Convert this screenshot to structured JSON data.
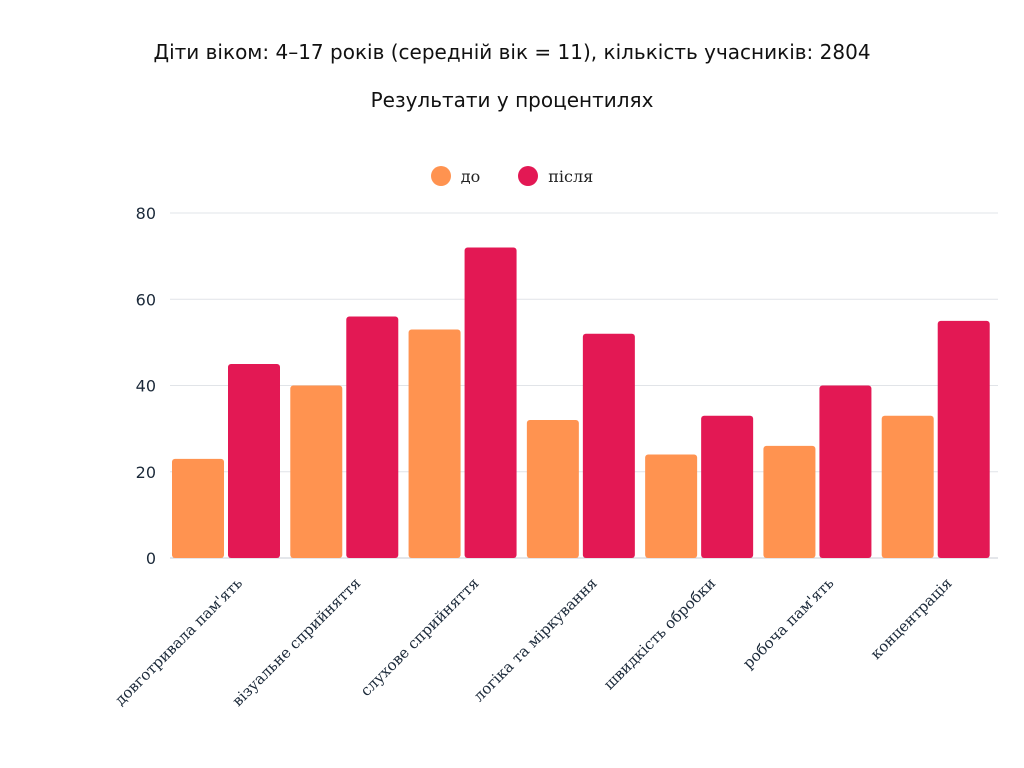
{
  "title": "Діти віком: 4–17 років (середній вік = 11), кількість учасників: 2804",
  "subtitle": "Результати у процентилях",
  "chart_data": {
    "type": "bar",
    "categories": [
      "довготривала пам'ять",
      "візуальне сприйняття",
      "слухове сприйняття",
      "логіка та міркування",
      "швидкість обробки",
      "робоча пам'ять",
      "концентрація"
    ],
    "series": [
      {
        "name": "до",
        "color": "#ff9350",
        "values": [
          23,
          40,
          53,
          32,
          24,
          26,
          33
        ]
      },
      {
        "name": "після",
        "color": "#e31854",
        "values": [
          45,
          56,
          72,
          52,
          33,
          40,
          55
        ]
      }
    ],
    "ylim": [
      0,
      80
    ],
    "yticks": [
      0,
      20,
      40,
      60,
      80
    ],
    "grid": true,
    "legend_position": "top-center"
  }
}
